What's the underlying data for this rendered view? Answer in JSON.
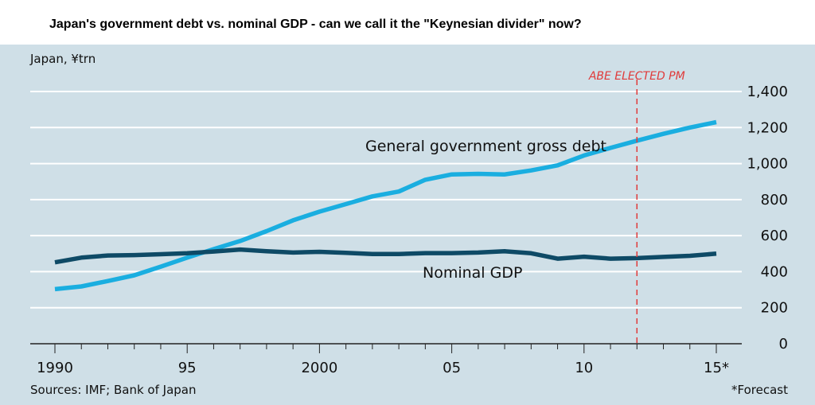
{
  "chart_data": {
    "type": "line",
    "title": "Japan's government debt vs. nominal GDP - can we call it the \"Keynesian divider\" now?",
    "ylabel": "Japan, ¥trn",
    "source": "Sources: IMF; Bank of Japan",
    "footnote": "*Forecast",
    "ylim": [
      0,
      1400
    ],
    "yticks": [
      0,
      200,
      400,
      600,
      800,
      1000,
      1200,
      1400
    ],
    "ytick_labels": [
      "0",
      "200",
      "400",
      "600",
      "800",
      "1,000",
      "1,200",
      "1,400"
    ],
    "xlim": [
      1990,
      2015
    ],
    "xticks": [
      1990,
      1995,
      2000,
      2005,
      2010,
      2015
    ],
    "xtick_labels": [
      "1990",
      "95",
      "2000",
      "05",
      "10",
      "15*"
    ],
    "grid": true,
    "x": [
      1990,
      1991,
      1992,
      1993,
      1994,
      1995,
      1996,
      1997,
      1998,
      1999,
      2000,
      2001,
      2002,
      2003,
      2004,
      2005,
      2006,
      2007,
      2008,
      2009,
      2010,
      2011,
      2012,
      2013,
      2014,
      2015
    ],
    "series": [
      {
        "name": "General government gross debt",
        "color": "#1aaee0",
        "values": [
          303,
          318,
          348,
          380,
          428,
          478,
          525,
          570,
          625,
          685,
          733,
          775,
          818,
          845,
          910,
          940,
          943,
          940,
          962,
          990,
          1045,
          1087,
          1127,
          1165,
          1200,
          1230
        ]
      },
      {
        "name": "Nominal GDP",
        "color": "#0e4a66",
        "values": [
          452,
          478,
          490,
          492,
          497,
          502,
          512,
          523,
          513,
          506,
          510,
          505,
          498,
          498,
          503,
          503,
          506,
          513,
          502,
          472,
          483,
          472,
          475,
          482,
          488,
          500
        ]
      }
    ],
    "annotations": [
      {
        "text": "ABE ELECTED PM",
        "x": 2012,
        "color": "#e03a3a"
      }
    ]
  }
}
